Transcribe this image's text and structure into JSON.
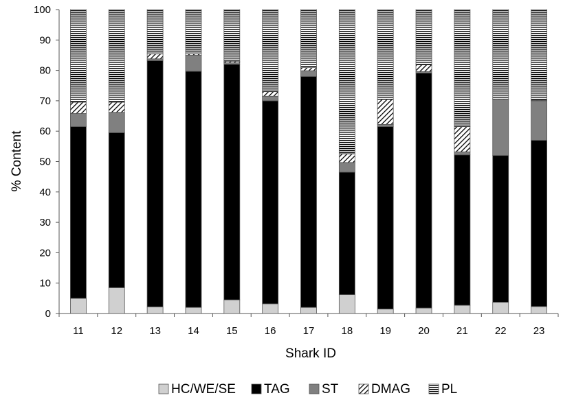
{
  "chart_data": {
    "type": "bar",
    "stacked": true,
    "title": "",
    "xlabel": "Shark ID",
    "ylabel": "% Content",
    "ylim": [
      0,
      100
    ],
    "yticks": [
      0,
      10,
      20,
      30,
      40,
      50,
      60,
      70,
      80,
      90,
      100
    ],
    "grid": false,
    "legend_position": "bottom",
    "categories": [
      "11",
      "12",
      "13",
      "14",
      "15",
      "16",
      "17",
      "18",
      "19",
      "20",
      "21",
      "22",
      "23"
    ],
    "series": [
      {
        "name": "HC/WE/SE",
        "pattern": "solid",
        "color": "#d0d0d0",
        "values": [
          5,
          8.5,
          2.2,
          2,
          4.5,
          3.2,
          2,
          6.2,
          1.5,
          1.8,
          2.7,
          3.7,
          2.3
        ]
      },
      {
        "name": "TAG",
        "pattern": "solid",
        "color": "#000000",
        "values": [
          56.5,
          51,
          81,
          77.7,
          77.5,
          66.8,
          76,
          40.3,
          60,
          77.3,
          49.5,
          48.3,
          54.7
        ]
      },
      {
        "name": "ST",
        "pattern": "solid",
        "color": "#808080",
        "values": [
          4.3,
          6.7,
          0.6,
          5.3,
          0.5,
          1.5,
          1.9,
          3.2,
          0.7,
          0.5,
          1,
          18.4,
          13
        ]
      },
      {
        "name": "DMAG",
        "pattern": "diagonal-hatch",
        "color": "#ffffff",
        "values": [
          3.7,
          3.3,
          1.6,
          0.4,
          0.5,
          1.5,
          1,
          2.8,
          8.2,
          2.2,
          8.3,
          0.2,
          0.2
        ]
      },
      {
        "name": "PL",
        "pattern": "horizontal-lines",
        "color": "#ffffff",
        "values": [
          30.5,
          30.5,
          14.6,
          14.6,
          17,
          27,
          19.1,
          47.5,
          29.6,
          18.2,
          38.5,
          29.4,
          29.8
        ]
      }
    ]
  }
}
